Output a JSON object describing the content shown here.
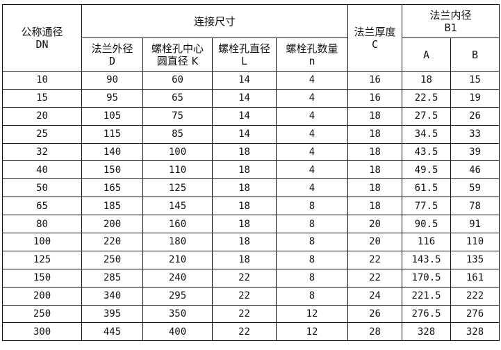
{
  "headers": {
    "dn": {
      "title": "公称通径",
      "symbol": "DN"
    },
    "connection": "连接尺寸",
    "d": {
      "title": "法兰外径",
      "symbol": "D"
    },
    "k": {
      "title": "螺栓孔中心",
      "symbol": "圆直径 K"
    },
    "l": {
      "title": "螺栓孔直径",
      "symbol": "L"
    },
    "n": {
      "title": "螺栓孔数量",
      "symbol": "n"
    },
    "c": {
      "title": "法兰厚度",
      "symbol": "C"
    },
    "b1": {
      "title": "法兰内径",
      "symbol": "B1"
    },
    "a": "A",
    "b": "B"
  },
  "rows": [
    [
      "10",
      "90",
      "60",
      "14",
      "4",
      "16",
      "18",
      "15"
    ],
    [
      "15",
      "95",
      "65",
      "14",
      "4",
      "16",
      "22.5",
      "19"
    ],
    [
      "20",
      "105",
      "75",
      "14",
      "4",
      "18",
      "27.5",
      "26"
    ],
    [
      "25",
      "115",
      "85",
      "14",
      "4",
      "18",
      "34.5",
      "33"
    ],
    [
      "32",
      "140",
      "100",
      "18",
      "4",
      "18",
      "43.5",
      "39"
    ],
    [
      "40",
      "150",
      "110",
      "18",
      "4",
      "18",
      "49.5",
      "46"
    ],
    [
      "50",
      "165",
      "125",
      "18",
      "4",
      "18",
      "61.5",
      "59"
    ],
    [
      "65",
      "185",
      "145",
      "18",
      "8",
      "18",
      "77.5",
      "78"
    ],
    [
      "80",
      "200",
      "160",
      "18",
      "8",
      "20",
      "90.5",
      "91"
    ],
    [
      "100",
      "220",
      "180",
      "18",
      "8",
      "20",
      "116",
      "110"
    ],
    [
      "125",
      "250",
      "210",
      "18",
      "8",
      "22",
      "143.5",
      "135"
    ],
    [
      "150",
      "285",
      "240",
      "22",
      "8",
      "22",
      "170.5",
      "161"
    ],
    [
      "200",
      "340",
      "295",
      "22",
      "8",
      "24",
      "221.5",
      "222"
    ],
    [
      "250",
      "395",
      "350",
      "22",
      "12",
      "26",
      "276.5",
      "276"
    ],
    [
      "300",
      "445",
      "400",
      "22",
      "12",
      "28",
      "328",
      "328"
    ]
  ]
}
